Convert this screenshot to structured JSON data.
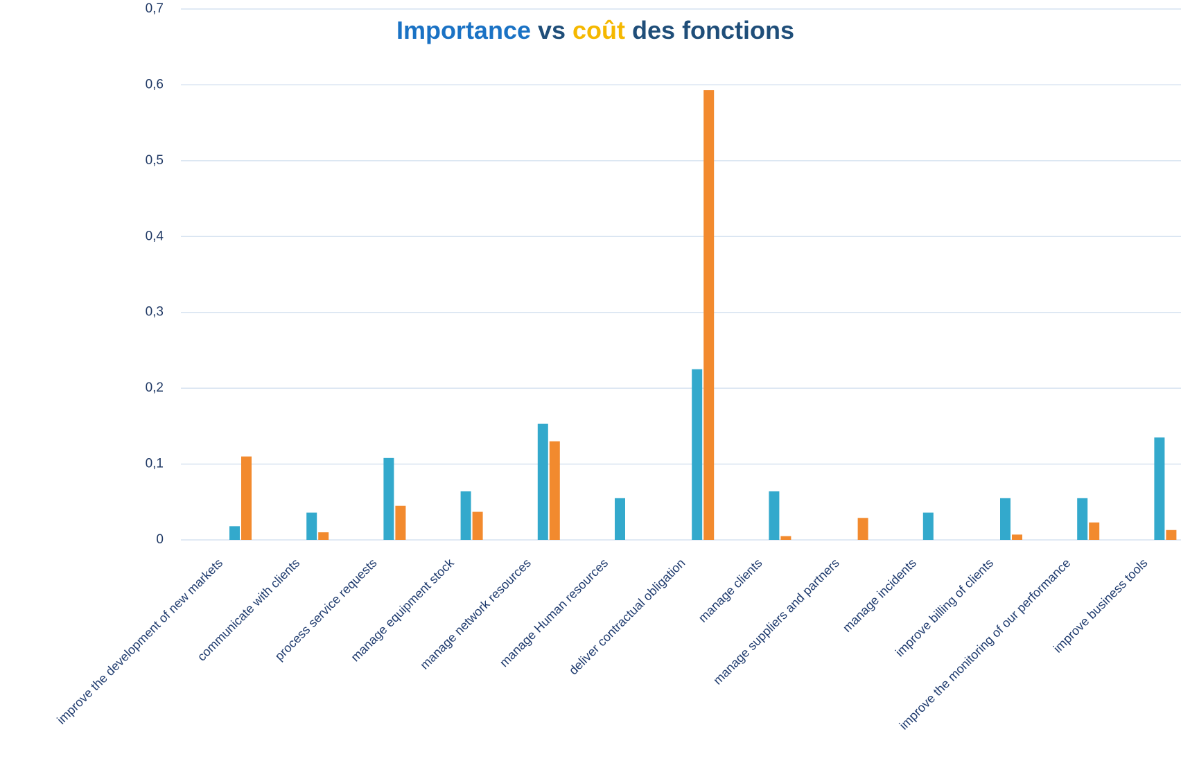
{
  "chart_data": {
    "type": "bar",
    "title_parts": [
      {
        "text": "Importance",
        "color": "#1a72c4"
      },
      {
        "text": "vs",
        "color": "#1f4e79"
      },
      {
        "text": "coût",
        "color": "#f5b800"
      },
      {
        "text": "des fonctions",
        "color": "#1f4e79"
      }
    ],
    "categories": [
      "improve the development of new markets",
      "communicate with clients",
      "process service requests",
      "manage equipment stock",
      "manage network resources",
      "manage Human resources",
      "deliver contractual obligation",
      "manage clients",
      "manage suppliers and partners",
      "manage incidents",
      "improve billing of clients",
      "improve the monitoring of our performance",
      "improve business tools"
    ],
    "series": [
      {
        "color": "#33a9cc",
        "values": [
          0.018,
          0.036,
          0.108,
          0.064,
          0.153,
          0.055,
          0.225,
          0.064,
          0,
          0.036,
          0.055,
          0.055,
          0.135
        ]
      },
      {
        "color": "#f28a2e",
        "values": [
          0.11,
          0.01,
          0.045,
          0.037,
          0.13,
          0,
          0.593,
          0.005,
          0.029,
          0,
          0.007,
          0.023,
          0.013
        ]
      }
    ],
    "ylim": [
      0,
      0.7
    ],
    "yticks": [
      0,
      {
        "value": 0.1,
        "label": "0,1"
      },
      {
        "value": 0.2,
        "label": "0,2"
      },
      {
        "value": 0.3,
        "label": "0,3"
      },
      {
        "value": 0.4,
        "label": "0,4"
      },
      {
        "value": 0.5,
        "label": "0,5"
      },
      {
        "value": 0.6,
        "label": "0,6"
      },
      {
        "value": 0.7,
        "label": "0,7"
      }
    ],
    "grid": true
  }
}
